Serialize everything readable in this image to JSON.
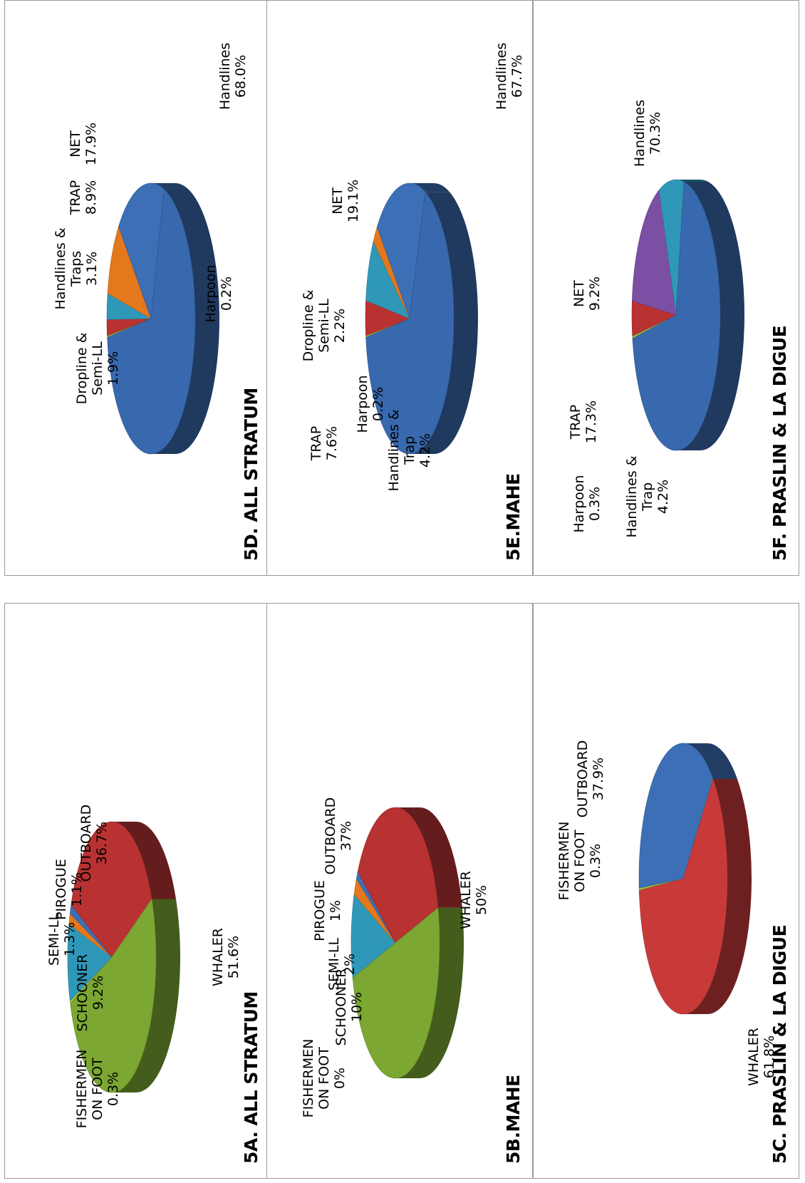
{
  "chart_data": [
    {
      "type": "pie",
      "title": "5A. ALL STRATUM",
      "slices": [
        {
          "name": "FISHERMEN ON FOOT",
          "value": 0.3,
          "label": "0.3%",
          "color": "#c8c832"
        },
        {
          "name": "SCHOONER",
          "value": 9.2,
          "label": "9.2%",
          "color": "#2f98b8"
        },
        {
          "name": "SEMI-LL",
          "value": 1.3,
          "label": "1.3%",
          "color": "#e4781c"
        },
        {
          "name": "PIROGUE",
          "value": 1.1,
          "label": "1.1%",
          "color": "#3c6fb5"
        },
        {
          "name": "OUTBOARD",
          "value": 36.7,
          "label": "36.7%",
          "color": "#b83232"
        },
        {
          "name": "WHALER",
          "value": 51.6,
          "label": "51.6%",
          "color": "#7ba732"
        }
      ]
    },
    {
      "type": "pie",
      "title": "5B.MAHE",
      "slices": [
        {
          "name": "FISHERMEN ON FOOT",
          "value": 0,
          "label": "0%",
          "color": "#c8c832"
        },
        {
          "name": "SCHOONER",
          "value": 10,
          "label": "10%",
          "color": "#2f98b8"
        },
        {
          "name": "SEMI-LL",
          "value": 2,
          "label": "2%",
          "color": "#e4781c"
        },
        {
          "name": "PIROGUE",
          "value": 1,
          "label": "1%",
          "color": "#3c6fb5"
        },
        {
          "name": "OUTBOARD",
          "value": 37,
          "label": "37%",
          "color": "#b83232"
        },
        {
          "name": "WHALER",
          "value": 50,
          "label": "50%",
          "color": "#7ba732"
        }
      ]
    },
    {
      "type": "pie",
      "title": "5C.  PRASLIN & LA DIGUE",
      "slices": [
        {
          "name": "FISHERMEN ON FOOT",
          "value": 0.3,
          "label": "0.3%",
          "color": "#9bbb3a"
        },
        {
          "name": "OUTBOARD",
          "value": 37.9,
          "label": "37.9%",
          "color": "#3c6fb5"
        },
        {
          "name": "WHALER",
          "value": 61.8,
          "label": "61.8%",
          "color": "#c83a3a"
        }
      ]
    },
    {
      "type": "pie",
      "title": "5D. ALL STRATUM",
      "slices": [
        {
          "name": "Harpoon",
          "value": 0.2,
          "label": "0.2%",
          "color": "#9bbb3a"
        },
        {
          "name": "Dropline & Semi-LL",
          "value": 1.9,
          "label": "1.9%",
          "color": "#b83232"
        },
        {
          "name": "Handlines & Traps",
          "value": 3.1,
          "label": "3.1%",
          "color": "#2f98b8"
        },
        {
          "name": "TRAP",
          "value": 8.9,
          "label": "8.9%",
          "color": "#e4781c"
        },
        {
          "name": "NET",
          "value": 17.9,
          "label": "17.9%",
          "color": "#3c6fb5"
        },
        {
          "name": "Handlines",
          "value": 68.0,
          "label": "68.0%",
          "color": "#3868ad"
        }
      ]
    },
    {
      "type": "pie",
      "title": "5E.MAHE",
      "slices": [
        {
          "name": "Harpoon",
          "value": 0.2,
          "label": "0.2%",
          "color": "#9bbb3a"
        },
        {
          "name": "Handlines & Trap",
          "value": 4.2,
          "label": "4.2%",
          "color": "#b83232"
        },
        {
          "name": "TRAP",
          "value": 7.6,
          "label": "7.6%",
          "color": "#2f98b8"
        },
        {
          "name": "Dropline & Semi-LL",
          "value": 2.2,
          "label": "2.2%",
          "color": "#e4781c"
        },
        {
          "name": "NET",
          "value": 19.1,
          "label": "19.1%",
          "color": "#3c6fb5"
        },
        {
          "name": "Handlines",
          "value": 67.7,
          "label": "67.7%",
          "color": "#3868ad"
        }
      ]
    },
    {
      "type": "pie",
      "title": "5F. PRASLIN & LA DIGUE",
      "slices": [
        {
          "name": "Harpoon",
          "value": 0.3,
          "label": "0.3%",
          "color": "#9bbb3a"
        },
        {
          "name": "Handlines & Trap",
          "value": 4.2,
          "label": "4.2%",
          "color": "#b83232"
        },
        {
          "name": "TRAP",
          "value": 17.3,
          "label": "17.3%",
          "color": "#7b4fa3"
        },
        {
          "name": "NET",
          "value": 9.2,
          "label": "9.2%",
          "color": "#2f98b8"
        },
        {
          "name": "Handlines",
          "value": 70.3,
          "label": "70.3%",
          "color": "#3868ad"
        }
      ]
    }
  ]
}
